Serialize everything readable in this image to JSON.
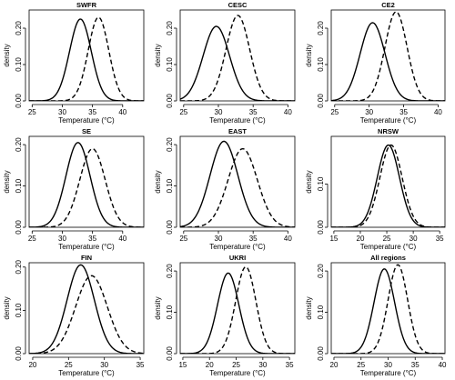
{
  "chart_data": [
    {
      "type": "line",
      "title": "SWFR",
      "xlabel": "Temperature (°C)",
      "ylabel": "density",
      "xlim": [
        24.5,
        43.5
      ],
      "ylim": [
        0,
        0.25
      ],
      "xticks": [
        25,
        30,
        35,
        40
      ],
      "yticks": [
        0.0,
        0.1,
        0.2
      ],
      "yticklabels": [
        "0.00",
        "0.10",
        "0.20"
      ],
      "series": [
        {
          "style": "solid",
          "mean": 33.0,
          "sd": 1.8,
          "peak": 0.225
        },
        {
          "style": "dashed",
          "mean": 36.0,
          "sd": 1.7,
          "peak": 0.23
        }
      ]
    },
    {
      "type": "line",
      "title": "CESC",
      "xlabel": "Temperature (°C)",
      "ylabel": "density",
      "xlim": [
        24.5,
        41.0
      ],
      "ylim": [
        0,
        0.25
      ],
      "xticks": [
        25,
        30,
        35,
        40
      ],
      "yticks": [
        0.0,
        0.1,
        0.2
      ],
      "yticklabels": [
        "0.00",
        "0.10",
        "0.20"
      ],
      "series": [
        {
          "style": "solid",
          "mean": 29.7,
          "sd": 1.9,
          "peak": 0.205
        },
        {
          "style": "dashed",
          "mean": 32.8,
          "sd": 1.7,
          "peak": 0.235
        }
      ]
    },
    {
      "type": "line",
      "title": "CE2",
      "xlabel": "Temperature (°C)",
      "ylabel": "density",
      "xlim": [
        24.5,
        41.0
      ],
      "ylim": [
        0,
        0.25
      ],
      "xticks": [
        25,
        30,
        35,
        40
      ],
      "yticks": [
        0.0,
        0.1,
        0.2
      ],
      "yticklabels": [
        "0.00",
        "0.10",
        "0.20"
      ],
      "series": [
        {
          "style": "solid",
          "mean": 30.5,
          "sd": 1.8,
          "peak": 0.215
        },
        {
          "style": "dashed",
          "mean": 33.9,
          "sd": 1.6,
          "peak": 0.245
        }
      ]
    },
    {
      "type": "line",
      "title": "SE",
      "xlabel": "Temperature (°C)",
      "ylabel": "density",
      "xlim": [
        24.5,
        43.5
      ],
      "ylim": [
        0,
        0.22
      ],
      "xticks": [
        25,
        30,
        35,
        40
      ],
      "yticks": [
        0.0,
        0.1,
        0.2
      ],
      "yticklabels": [
        "0.00",
        "0.10",
        "0.20"
      ],
      "series": [
        {
          "style": "solid",
          "mean": 32.6,
          "sd": 2.0,
          "peak": 0.205
        },
        {
          "style": "dashed",
          "mean": 35.0,
          "sd": 2.1,
          "peak": 0.19
        }
      ]
    },
    {
      "type": "line",
      "title": "EAST",
      "xlabel": "Temperature (°C)",
      "ylabel": "density",
      "xlim": [
        24.5,
        41.0
      ],
      "ylim": [
        0,
        0.22
      ],
      "xticks": [
        25,
        30,
        35,
        40
      ],
      "yticks": [
        0.0,
        0.1,
        0.2
      ],
      "yticklabels": [
        "0.00",
        "0.10",
        "0.20"
      ],
      "series": [
        {
          "style": "solid",
          "mean": 30.8,
          "sd": 2.0,
          "peak": 0.208
        },
        {
          "style": "dashed",
          "mean": 33.5,
          "sd": 2.1,
          "peak": 0.19
        }
      ]
    },
    {
      "type": "line",
      "title": "NRSW",
      "xlabel": "Temperature (°C)",
      "ylabel": "density",
      "xlim": [
        14.5,
        36.0
      ],
      "ylim": [
        0,
        0.21
      ],
      "xticks": [
        15,
        20,
        25,
        30,
        35
      ],
      "yticks": [
        0.0,
        0.1
      ],
      "yticklabels": [
        "0.00",
        "0.10"
      ],
      "series": [
        {
          "style": "solid",
          "mean": 25.3,
          "sd": 2.1,
          "peak": 0.19
        },
        {
          "style": "dashed",
          "mean": 25.8,
          "sd": 2.1,
          "peak": 0.19
        }
      ]
    },
    {
      "type": "line",
      "title": "FIN",
      "xlabel": "Temperature (°C)",
      "ylabel": "density",
      "xlim": [
        19.5,
        35.5
      ],
      "ylim": [
        0,
        0.21
      ],
      "xticks": [
        20,
        25,
        30,
        35
      ],
      "yticks": [
        0.0,
        0.1,
        0.2
      ],
      "yticklabels": [
        "0.00",
        "0.10",
        "0.20"
      ],
      "series": [
        {
          "style": "solid",
          "mean": 26.7,
          "sd": 1.9,
          "peak": 0.205
        },
        {
          "style": "dashed",
          "mean": 28.2,
          "sd": 2.2,
          "peak": 0.18
        }
      ]
    },
    {
      "type": "line",
      "title": "UKRI",
      "xlabel": "Temperature (°C)",
      "ylabel": "density",
      "xlim": [
        14.5,
        36.0
      ],
      "ylim": [
        0,
        0.22
      ],
      "xticks": [
        15,
        20,
        25,
        30,
        35
      ],
      "yticks": [
        0.0,
        0.1,
        0.2
      ],
      "yticklabels": [
        "0.00",
        "0.10",
        "0.20"
      ],
      "series": [
        {
          "style": "solid",
          "mean": 23.5,
          "sd": 2.0,
          "peak": 0.195
        },
        {
          "style": "dashed",
          "mean": 26.8,
          "sd": 1.9,
          "peak": 0.21
        }
      ]
    },
    {
      "type": "line",
      "title": "All regions",
      "xlabel": "Temperature (°C)",
      "ylabel": "density",
      "xlim": [
        19.5,
        40.5
      ],
      "ylim": [
        0,
        0.22
      ],
      "xticks": [
        20,
        25,
        30,
        35,
        40
      ],
      "yticks": [
        0.0,
        0.1,
        0.2
      ],
      "yticklabels": [
        "0.00",
        "0.10",
        "0.20"
      ],
      "series": [
        {
          "style": "solid",
          "mean": 29.3,
          "sd": 1.9,
          "peak": 0.205
        },
        {
          "style": "dashed",
          "mean": 31.8,
          "sd": 1.8,
          "peak": 0.215
        }
      ]
    }
  ]
}
